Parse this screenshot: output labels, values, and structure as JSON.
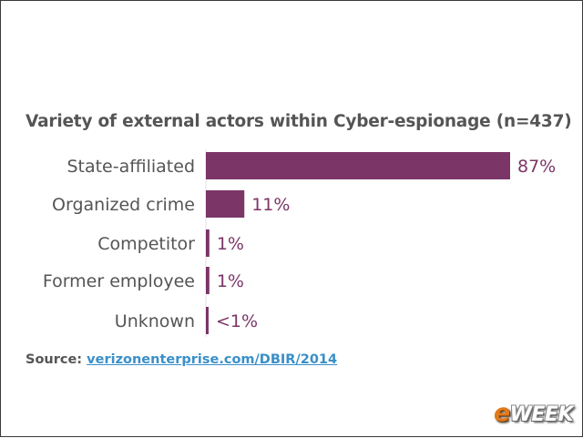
{
  "chart_data": {
    "type": "bar",
    "orientation": "horizontal",
    "title": "Variety of external actors within Cyber-espionage (n=437)",
    "categories": [
      "State-affiliated",
      "Organized crime",
      "Competitor",
      "Former employee",
      "Unknown"
    ],
    "values": [
      87,
      11,
      1,
      1,
      0.5
    ],
    "value_labels": [
      "87%",
      "11%",
      "1%",
      "1%",
      "<1%"
    ],
    "xlim": [
      0,
      87
    ],
    "grid": false,
    "bar_color": "#7b3567",
    "label_color": "#7b3567"
  },
  "source": {
    "prefix": "Source:",
    "link_text": "verizonenterprise.com/DBIR/2014"
  },
  "logo": {
    "e": "e",
    "rest": "WEEK"
  }
}
